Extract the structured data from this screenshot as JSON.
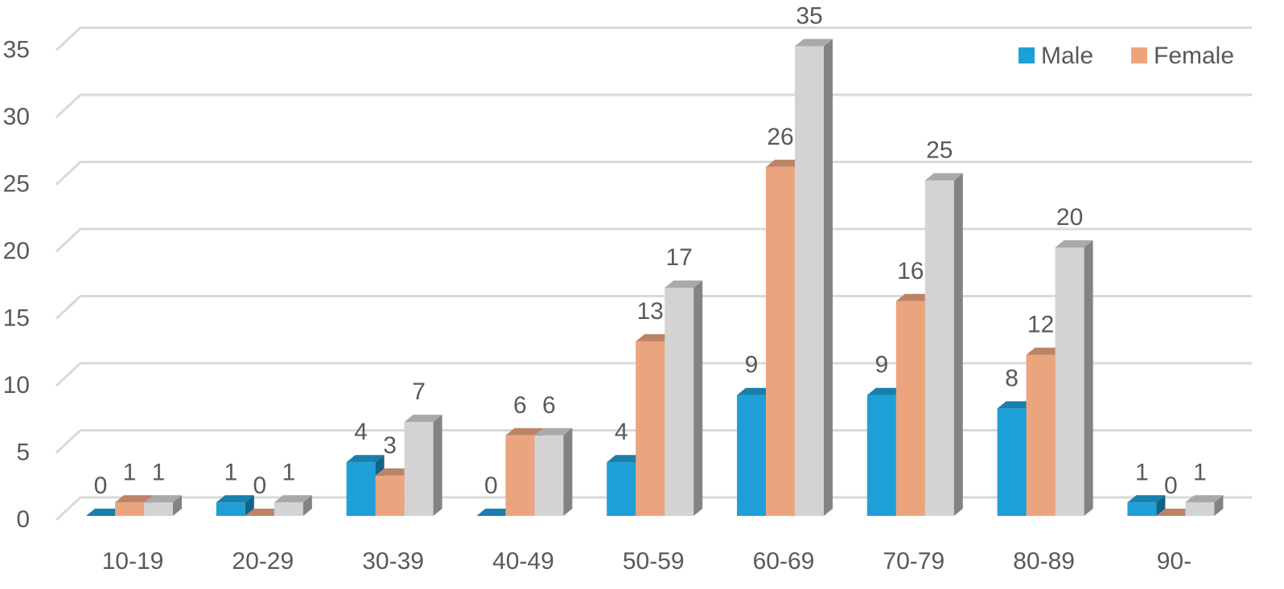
{
  "chart_data": {
    "type": "bar",
    "variant": "clustered-3d",
    "categories": [
      "10-19",
      "20-29",
      "30-39",
      "40-49",
      "50-59",
      "60-69",
      "70-79",
      "80-89",
      "90-"
    ],
    "series": [
      {
        "name": "Male",
        "color": "#1f9fd8",
        "values": [
          0,
          1,
          4,
          0,
          4,
          9,
          9,
          8,
          1
        ]
      },
      {
        "name": "Female",
        "color": "#eba57e",
        "values": [
          1,
          0,
          3,
          6,
          13,
          26,
          16,
          12,
          0
        ]
      },
      {
        "name": "",
        "color": "#d3d3d3",
        "values": [
          1,
          1,
          7,
          6,
          17,
          35,
          25,
          20,
          1
        ]
      }
    ],
    "title": "",
    "xlabel": "",
    "ylabel": "",
    "ylim": [
      0,
      35
    ],
    "yticks": [
      0,
      5,
      10,
      15,
      20,
      25,
      30,
      35
    ],
    "grid": true,
    "legend": {
      "position": "top-right",
      "entries": [
        "Male",
        "Female"
      ]
    },
    "data_labels": true
  }
}
